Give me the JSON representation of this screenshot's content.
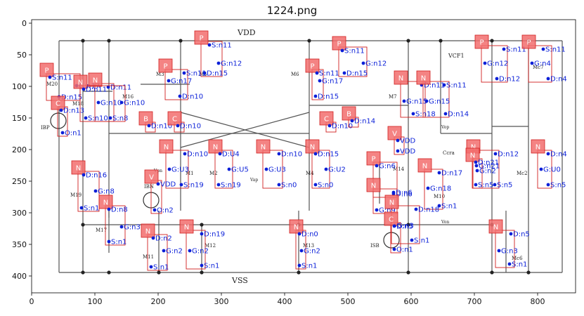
{
  "title": "1224.png",
  "axes": {
    "x_ticks": [
      "0",
      "100",
      "200",
      "300",
      "400",
      "500",
      "600",
      "700",
      "800"
    ],
    "y_ticks": [
      "0",
      "50",
      "100",
      "150",
      "200",
      "250",
      "300",
      "350",
      "400"
    ]
  },
  "circuit_labels": {
    "vdd": "VDD",
    "vss": "VSS",
    "vcf1": "VCF1",
    "isb": "ISB",
    "ibp": "IBP",
    "ibn": "IBN",
    "vop": "Vop",
    "von": "Von",
    "vpn": "Vpn",
    "vap": "Vap",
    "m1": "M1",
    "m2": "M2",
    "m3": "M3",
    "m4": "M4",
    "m5": "M5",
    "m6": "M6",
    "m7": "M7",
    "m10": "M10",
    "m11": "M11",
    "m12": "M12",
    "m13": "M13",
    "m14": "M14",
    "m16": "M16",
    "m17": "M17",
    "m18": "M18",
    "m19": "M19",
    "m20": "M20",
    "mc2": "Mc2",
    "mc6": "Mc6",
    "mc7": "Mc7",
    "ccra": "Ccra"
  },
  "colors": {
    "box_fill": "#f26d6d",
    "box_edge": "#d12020",
    "pin_color": "#0a1fd8",
    "wire": "#555555"
  },
  "components": [
    {
      "type": "P",
      "pins": [
        [
          "S:n11",
          71,
          110
        ],
        [
          "G:n17",
          109,
          122
        ],
        [
          "D:n15",
          84,
          138
        ]
      ]
    },
    {
      "type": "P",
      "pins": [
        [
          "S:n11",
          298,
          64
        ],
        [
          "G:n12",
          311,
          90
        ],
        [
          "D:n15",
          291,
          104
        ]
      ]
    },
    {
      "type": "P",
      "pins": [
        [
          "S:n11",
          487,
          72
        ],
        [
          "G:n12",
          517,
          90
        ],
        [
          "D:n15",
          490,
          104
        ]
      ]
    },
    {
      "type": "P",
      "pins": [
        [
          "S:n11",
          262,
          104
        ],
        [
          "G:n17",
          240,
          115
        ],
        [
          "D:n10",
          256,
          137
        ]
      ]
    },
    {
      "type": "P",
      "pins": [
        [
          "S:n11",
          451,
          104
        ],
        [
          "G:n17",
          455,
          115
        ],
        [
          "D:n15",
          449,
          137
        ]
      ]
    },
    {
      "type": "P",
      "pins": [
        [
          "S:n11",
          717,
          70
        ],
        [
          "G:n12",
          690,
          90
        ],
        [
          "D:n12",
          707,
          112
        ]
      ]
    },
    {
      "type": "P",
      "pins": [
        [
          "S:n11",
          773,
          70
        ],
        [
          "G:n4",
          757,
          90
        ],
        [
          "D:n4",
          780,
          112
        ]
      ]
    },
    {
      "type": "N",
      "pins": [
        [
          "D:n11",
          154,
          124
        ],
        [
          "G:n10",
          140,
          146
        ],
        [
          "S:n8",
          157,
          168
        ]
      ]
    },
    {
      "type": "N",
      "pins": [
        [
          "D:n11",
          119,
          127
        ],
        [
          "G:n10",
          173,
          146
        ],
        [
          "S:n10",
          122,
          168
        ]
      ]
    },
    {
      "type": "C",
      "pins": [
        [
          "D:n13",
          87,
          157
        ],
        [
          "O:n1",
          89,
          189
        ]
      ]
    },
    {
      "type": "B",
      "pins": [
        [
          "D:n10",
          212,
          179
        ]
      ]
    },
    {
      "type": "C",
      "pins": [
        [
          "D:n10",
          253,
          179
        ]
      ]
    },
    {
      "type": "C",
      "pins": [
        [
          "D:n10",
          469,
          179
        ]
      ]
    },
    {
      "type": "B",
      "pins": [
        [
          "D:n14",
          501,
          172
        ]
      ]
    },
    {
      "type": "N",
      "pins": [
        [
          "D:n11",
          600,
          121
        ],
        [
          "G:n15",
          575,
          144
        ],
        [
          "S:n18",
          588,
          162
        ]
      ]
    },
    {
      "type": "N",
      "pins": [
        [
          "S:n11",
          632,
          121
        ],
        [
          "G:n15",
          607,
          144
        ],
        [
          "D:n14",
          634,
          162
        ]
      ]
    },
    {
      "type": "V",
      "pins": [
        [
          "VDD",
          566,
          200
        ],
        [
          "VDD",
          566,
          215
        ]
      ]
    },
    {
      "type": "P",
      "pins": [
        [
          "G:n6",
          536,
          236
        ],
        [
          "D:n6",
          560,
          276
        ]
      ]
    },
    {
      "type": "N",
      "pins": [
        [
          "D:n10",
          263,
          219
        ],
        [
          "G:U3",
          241,
          241
        ],
        [
          "S:n19",
          258,
          263
        ]
      ]
    },
    {
      "type": "N",
      "pins": [
        [
          "D:U4",
          313,
          219
        ],
        [
          "G:U5",
          326,
          241
        ],
        [
          "S:n19",
          311,
          263
        ]
      ]
    },
    {
      "type": "N",
      "pins": [
        [
          "D:n10",
          397,
          219
        ],
        [
          "G:U3",
          379,
          241
        ],
        [
          "S:n0",
          397,
          263
        ]
      ]
    },
    {
      "type": "N",
      "pins": [
        [
          "D:n15",
          449,
          219
        ],
        [
          "G:U2",
          464,
          241
        ],
        [
          "S:n0",
          449,
          263
        ]
      ]
    },
    {
      "type": "V",
      "pins": [
        [
          "VDD",
          225,
          262
        ],
        [
          "O:n2",
          220,
          299
        ]
      ]
    },
    {
      "type": "N",
      "pins": [
        [
          "D:n16",
          119,
          249
        ],
        [
          "G:n8",
          136,
          272
        ],
        [
          "S:n1",
          116,
          296
        ]
      ]
    },
    {
      "type": "N",
      "pins": [
        [
          "D:n8",
          155,
          298
        ],
        [
          "G:n3",
          173,
          323
        ],
        [
          "S:n1",
          155,
          344
        ]
      ]
    },
    {
      "type": "N",
      "pins": [
        [
          "D:n17",
          625,
          246
        ],
        [
          "G:n18",
          609,
          268
        ],
        [
          "S:n1",
          625,
          293
        ]
      ]
    },
    {
      "type": "N",
      "pins": [
        [
          "D:n12",
          705,
          219
        ],
        [
          "G:n21",
          678,
          236
        ],
        [
          "S:n5",
          704,
          263
        ]
      ]
    },
    {
      "type": "N",
      "pins": [
        [
          "D:n4",
          780,
          219
        ],
        [
          "G:U0",
          770,
          241
        ],
        [
          "S:n5",
          780,
          263
        ]
      ]
    },
    {
      "type": "N",
      "pins": [
        [
          "D:n21",
          677,
          231
        ],
        [
          "G:n2",
          679,
          243
        ],
        [
          "S:n5",
          677,
          263
        ]
      ]
    },
    {
      "type": "N",
      "pins": [
        [
          "D:n6",
          560,
          274
        ],
        [
          "G:n9",
          536,
          299
        ]
      ]
    },
    {
      "type": "N",
      "pins": [
        [
          "D:n18",
          592,
          298
        ],
        [
          "G:n3",
          562,
          321
        ],
        [
          "S:n1",
          586,
          342
        ]
      ]
    },
    {
      "type": "C",
      "pins": [
        [
          "D:n3",
          561,
          322
        ],
        [
          "O:n1",
          561,
          355
        ]
      ]
    },
    {
      "type": "N",
      "pins": [
        [
          "D:n2",
          218,
          339
        ],
        [
          "G:n2",
          233,
          357
        ],
        [
          "S:n1",
          215,
          380
        ]
      ]
    },
    {
      "type": "N",
      "pins": [
        [
          "D:n19",
          287,
          333
        ],
        [
          "G:n2",
          270,
          357
        ],
        [
          "S:n1",
          287,
          378
        ]
      ]
    },
    {
      "type": "N",
      "pins": [
        [
          "D:n0",
          426,
          333
        ],
        [
          "G:n2",
          429,
          357
        ],
        [
          "S:n1",
          426,
          378
        ]
      ]
    },
    {
      "type": "N",
      "pins": [
        [
          "D:n5",
          727,
          333
        ],
        [
          "G:n3",
          710,
          357
        ],
        [
          "S:n1",
          725,
          376
        ]
      ]
    }
  ]
}
